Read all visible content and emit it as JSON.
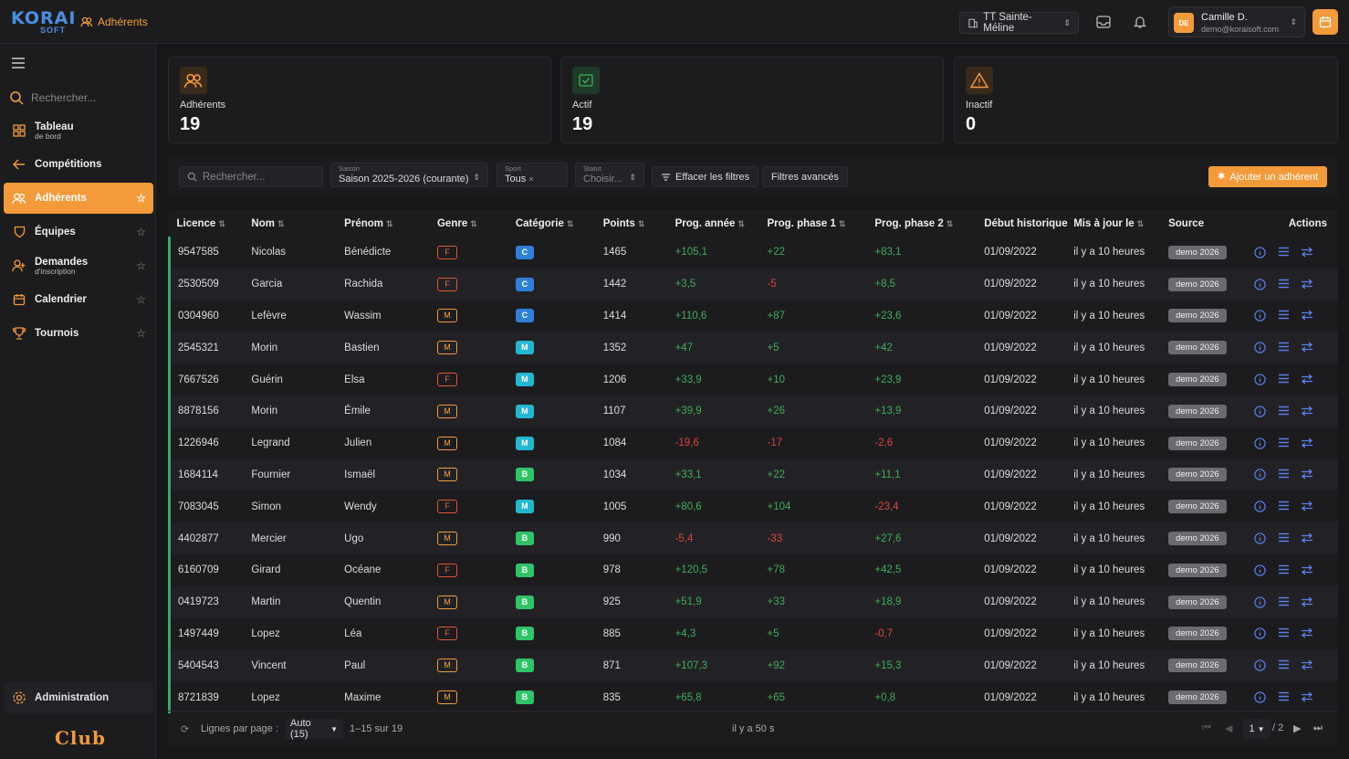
{
  "app": {
    "logo_line1": "KORAI",
    "logo_line2": "SOFT",
    "breadcrumb": "Adhérents",
    "club_word": "Club"
  },
  "topbar": {
    "club": "TT Sainte-Méline",
    "user_initials": "DE",
    "user_name": "Camille D.",
    "user_email": "demo@koraisoft.com"
  },
  "sidebar": {
    "search_placeholder": "Rechercher...",
    "items": [
      {
        "label": "Tableau",
        "sub": "de bord",
        "icon": "grid-icon",
        "star": false
      },
      {
        "label": "Compétitions",
        "sub": "",
        "icon": "arrow-left-icon",
        "star": false
      },
      {
        "label": "Adhérents",
        "sub": "",
        "icon": "users-icon",
        "star": true,
        "active": true
      },
      {
        "label": "Équipes",
        "sub": "",
        "icon": "shield-icon",
        "star": true
      },
      {
        "label": "Demandes",
        "sub": "d'inscription",
        "icon": "user-plus-icon",
        "star": true
      },
      {
        "label": "Calendrier",
        "sub": "",
        "icon": "calendar-icon",
        "star": true
      },
      {
        "label": "Tournois",
        "sub": "",
        "icon": "trophy-icon",
        "star": true
      }
    ],
    "admin_label": "Administration"
  },
  "stats": [
    {
      "label": "Adhérents",
      "value": "19",
      "icon": "users-icon",
      "color": "#f39a3a"
    },
    {
      "label": "Actif",
      "value": "19",
      "icon": "check-icon",
      "color": "#3fae57"
    },
    {
      "label": "Inactif",
      "value": "0",
      "icon": "warning-icon",
      "color": "#f39a3a"
    }
  ],
  "filters": {
    "search_placeholder": "Rechercher...",
    "season_label": "Saison",
    "season_value": "Saison 2025-2026 (courante)",
    "sport_label": "Sport",
    "sport_value": "Tous",
    "status_label": "Statut",
    "status_value": "Choisir...",
    "clear_label": "Effacer les filtres",
    "advanced_label": "Filtres avancés",
    "add_label": "Ajouter un adhérent"
  },
  "table": {
    "columns": [
      "Licence",
      "Nom",
      "Prénom",
      "Genre",
      "Catégorie",
      "Points",
      "Prog. année",
      "Prog. phase 1",
      "Prog. phase 2",
      "Début historique",
      "Mis à jour le",
      "Source",
      "Actions"
    ],
    "rows": [
      {
        "licence": "9547585",
        "nom": "Nicolas",
        "prenom": "Bénédicte",
        "genre": "F",
        "cat": "C",
        "points": "1465",
        "pa": "+105,1",
        "p1": "+22",
        "p2": "+83,1",
        "debut": "01/09/2022",
        "maj": "il y a 10 heures",
        "source": "demo 2026"
      },
      {
        "licence": "2530509",
        "nom": "Garcia",
        "prenom": "Rachida",
        "genre": "F",
        "cat": "C",
        "points": "1442",
        "pa": "+3,5",
        "p1": "-5",
        "p2": "+8,5",
        "debut": "01/09/2022",
        "maj": "il y a 10 heures",
        "source": "demo 2026"
      },
      {
        "licence": "0304960",
        "nom": "Lefèvre",
        "prenom": "Wassim",
        "genre": "M",
        "cat": "C",
        "points": "1414",
        "pa": "+110,6",
        "p1": "+87",
        "p2": "+23,6",
        "debut": "01/09/2022",
        "maj": "il y a 10 heures",
        "source": "demo 2026"
      },
      {
        "licence": "2545321",
        "nom": "Morin",
        "prenom": "Bastien",
        "genre": "M",
        "cat": "M",
        "points": "1352",
        "pa": "+47",
        "p1": "+5",
        "p2": "+42",
        "debut": "01/09/2022",
        "maj": "il y a 10 heures",
        "source": "demo 2026"
      },
      {
        "licence": "7667526",
        "nom": "Guérin",
        "prenom": "Elsa",
        "genre": "F",
        "cat": "M",
        "points": "1206",
        "pa": "+33,9",
        "p1": "+10",
        "p2": "+23,9",
        "debut": "01/09/2022",
        "maj": "il y a 10 heures",
        "source": "demo 2026"
      },
      {
        "licence": "8878156",
        "nom": "Morin",
        "prenom": "Émile",
        "genre": "M",
        "cat": "M",
        "points": "1107",
        "pa": "+39,9",
        "p1": "+26",
        "p2": "+13,9",
        "debut": "01/09/2022",
        "maj": "il y a 10 heures",
        "source": "demo 2026"
      },
      {
        "licence": "1226946",
        "nom": "Legrand",
        "prenom": "Julien",
        "genre": "M",
        "cat": "M",
        "points": "1084",
        "pa": "-19,6",
        "p1": "-17",
        "p2": "-2,6",
        "debut": "01/09/2022",
        "maj": "il y a 10 heures",
        "source": "demo 2026"
      },
      {
        "licence": "1684114",
        "nom": "Fournier",
        "prenom": "Ismaël",
        "genre": "M",
        "cat": "B",
        "points": "1034",
        "pa": "+33,1",
        "p1": "+22",
        "p2": "+11,1",
        "debut": "01/09/2022",
        "maj": "il y a 10 heures",
        "source": "demo 2026"
      },
      {
        "licence": "7083045",
        "nom": "Simon",
        "prenom": "Wendy",
        "genre": "F",
        "cat": "M",
        "points": "1005",
        "pa": "+80,6",
        "p1": "+104",
        "p2": "-23,4",
        "debut": "01/09/2022",
        "maj": "il y a 10 heures",
        "source": "demo 2026"
      },
      {
        "licence": "4402877",
        "nom": "Mercier",
        "prenom": "Ugo",
        "genre": "M",
        "cat": "B",
        "points": "990",
        "pa": "-5,4",
        "p1": "-33",
        "p2": "+27,6",
        "debut": "01/09/2022",
        "maj": "il y a 10 heures",
        "source": "demo 2026"
      },
      {
        "licence": "6160709",
        "nom": "Girard",
        "prenom": "Océane",
        "genre": "F",
        "cat": "B",
        "points": "978",
        "pa": "+120,5",
        "p1": "+78",
        "p2": "+42,5",
        "debut": "01/09/2022",
        "maj": "il y a 10 heures",
        "source": "demo 2026"
      },
      {
        "licence": "0419723",
        "nom": "Martin",
        "prenom": "Quentin",
        "genre": "M",
        "cat": "B",
        "points": "925",
        "pa": "+51,9",
        "p1": "+33",
        "p2": "+18,9",
        "debut": "01/09/2022",
        "maj": "il y a 10 heures",
        "source": "demo 2026"
      },
      {
        "licence": "1497449",
        "nom": "Lopez",
        "prenom": "Léa",
        "genre": "F",
        "cat": "B",
        "points": "885",
        "pa": "+4,3",
        "p1": "+5",
        "p2": "-0,7",
        "debut": "01/09/2022",
        "maj": "il y a 10 heures",
        "source": "demo 2026"
      },
      {
        "licence": "5404543",
        "nom": "Vincent",
        "prenom": "Paul",
        "genre": "M",
        "cat": "B",
        "points": "871",
        "pa": "+107,3",
        "p1": "+92",
        "p2": "+15,3",
        "debut": "01/09/2022",
        "maj": "il y a 10 heures",
        "source": "demo 2026"
      },
      {
        "licence": "8721839",
        "nom": "Lopez",
        "prenom": "Maxime",
        "genre": "M",
        "cat": "B",
        "points": "835",
        "pa": "+65,8",
        "p1": "+65",
        "p2": "+0,8",
        "debut": "01/09/2022",
        "maj": "il y a 10 heures",
        "source": "demo 2026"
      }
    ],
    "cat_colors": {
      "C": "#2f7fd8",
      "M": "#22b8d0",
      "B": "#2fc46a"
    }
  },
  "pager": {
    "rows_label": "Lignes par page :",
    "rows_value": "Auto (15)",
    "range": "1–15 sur 19",
    "updated": "il y a 50 s",
    "page": "1",
    "total": "/ 2"
  }
}
